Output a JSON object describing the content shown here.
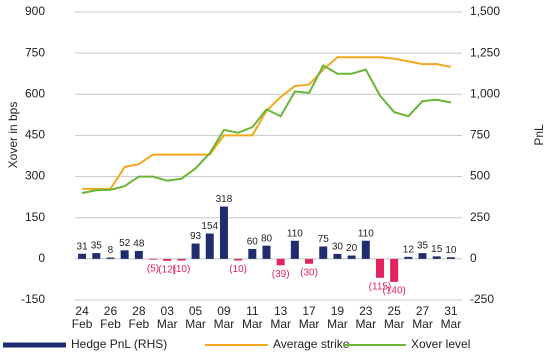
{
  "chart_data": {
    "type": "bar",
    "categories": [
      "24 Feb",
      null,
      "26 Feb",
      null,
      "28 Feb",
      null,
      "03 Mar",
      null,
      "05 Mar",
      null,
      "09 Mar",
      null,
      "11 Mar",
      null,
      "13 Mar",
      null,
      "17 Mar",
      null,
      "19 Mar",
      null,
      "23 Mar",
      null,
      "25 Mar",
      null,
      "27 Mar",
      null,
      "31 Mar"
    ],
    "ylabel": "Xover in bps",
    "y2label": "PnL",
    "ylim": [
      -150,
      900
    ],
    "yticks": [
      -150,
      0,
      150,
      300,
      450,
      600,
      750,
      900
    ],
    "y2lim": [
      -250,
      1500
    ],
    "y2ticks": [
      -250,
      0,
      250,
      500,
      750,
      {
        "value": 1000,
        "label": "1,000"
      },
      {
        "value": 1250,
        "label": "1,250"
      },
      {
        "value": 1500,
        "label": "1,500"
      }
    ],
    "grid": true,
    "series": [
      {
        "name": "Hedge PnL (RHS)",
        "type": "bar",
        "axis": "y2",
        "color": "#1f2d6e",
        "negative_color": "#e0245e",
        "values": [
          31,
          35,
          8,
          52,
          48,
          -5,
          -12,
          -10,
          93,
          154,
          318,
          -10,
          60,
          80,
          -39,
          110,
          -30,
          75,
          30,
          20,
          110,
          -115,
          -140,
          12,
          35,
          15,
          10
        ],
        "value_labels": [
          "31",
          "35",
          "8",
          "52",
          "48",
          "(5)",
          "(12)",
          "(10)",
          "93",
          "154",
          "318",
          "(10)",
          "60",
          "80",
          "(39)",
          "110",
          "(30)",
          "75",
          "30",
          "20",
          "110",
          "(115)",
          "(140)",
          "12",
          "35",
          "15",
          "10"
        ]
      },
      {
        "name": "Average strike",
        "type": "line",
        "color": "#f2a81d",
        "values": [
          255,
          255,
          255,
          335,
          345,
          380,
          380,
          380,
          380,
          380,
          450,
          450,
          450,
          540,
          590,
          630,
          635,
          690,
          735,
          735,
          735,
          735,
          730,
          720,
          710,
          710,
          700
        ]
      },
      {
        "name": "Xover level",
        "type": "line",
        "color": "#6bb536",
        "values": [
          240,
          250,
          252,
          265,
          300,
          300,
          285,
          292,
          330,
          385,
          470,
          460,
          480,
          545,
          520,
          610,
          605,
          705,
          675,
          675,
          690,
          595,
          535,
          520,
          575,
          580,
          570
        ]
      }
    ]
  }
}
